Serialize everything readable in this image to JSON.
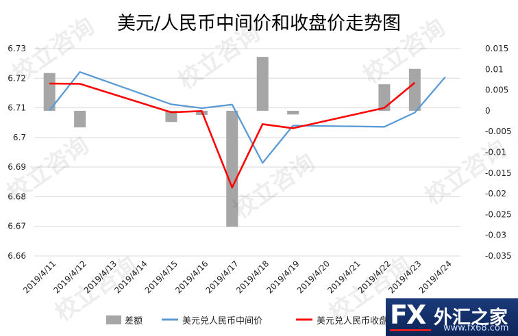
{
  "chart_data": {
    "type": "bar+line",
    "title": "美元/人民币中间价和收盘价走势图",
    "categories": [
      "2019/4/11",
      "2019/4/12",
      "2019/4/13",
      "2019/4/14",
      "2019/4/15",
      "2019/4/16",
      "2019/4/17",
      "2019/4/18",
      "2019/4/19",
      "2019/4/20",
      "2019/4/21",
      "2019/4/22",
      "2019/4/23",
      "2019/4/24"
    ],
    "left_axis": {
      "min": 6.66,
      "max": 6.73,
      "step": 0.01,
      "ticks": [
        "6.73",
        "6.72",
        "6.71",
        "6.7",
        "6.69",
        "6.68",
        "6.67",
        "6.66"
      ]
    },
    "right_axis": {
      "min": -0.035,
      "max": 0.015,
      "step": 0.005,
      "ticks": [
        "0.015",
        "0.01",
        "0.005",
        "0",
        "-0.005",
        "-0.01",
        "-0.015",
        "-0.02",
        "-0.025",
        "-0.03",
        "-0.035"
      ]
    },
    "series": [
      {
        "name": "差额",
        "type": "bar",
        "axis": "right",
        "color": "#a6a6a6",
        "values": [
          0.0091,
          -0.004,
          null,
          null,
          -0.0027,
          -0.001,
          -0.028,
          0.013,
          -0.0009,
          null,
          null,
          0.0064,
          0.0101,
          null
        ]
      },
      {
        "name": "美元兑人民币中间价",
        "type": "line",
        "axis": "left",
        "color": "#5b9bd5",
        "values": [
          6.7091,
          6.7221,
          null,
          null,
          6.7112,
          6.7099,
          6.7111,
          6.6914,
          6.704,
          null,
          null,
          6.7036,
          6.7084,
          6.7204
        ]
      },
      {
        "name": "美元兑人民币收盘价",
        "type": "line",
        "axis": "left",
        "color": "#ff0000",
        "values": [
          6.7182,
          6.7181,
          null,
          null,
          6.7085,
          6.7089,
          6.6831,
          6.7045,
          6.7031,
          null,
          null,
          6.71,
          6.7185,
          null
        ]
      }
    ],
    "legend_position": "bottom",
    "grid": true
  },
  "watermark": "校立咨询",
  "logo": {
    "brand": "FX",
    "name": "外汇之家",
    "url": "www.fx68.com"
  }
}
